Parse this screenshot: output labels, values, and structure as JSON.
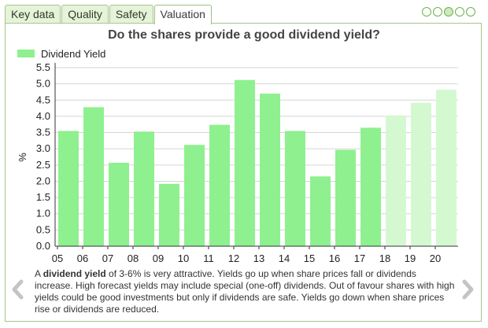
{
  "tabs": [
    {
      "label": "Key data"
    },
    {
      "label": "Quality"
    },
    {
      "label": "Safety"
    },
    {
      "label": "Valuation"
    }
  ],
  "active_tab": 3,
  "pager": {
    "count": 5,
    "active": 2
  },
  "colors": {
    "bar_actual": "#8ef08e",
    "bar_forecast": "#d4f9d0",
    "arrow": "#c4c4c4"
  },
  "caption": {
    "intro": "A ",
    "term": "dividend yield",
    "rest": " of 3-6% is very attractive. Yields go up when share prices fall or dividends increase. High forecast yields may include special (one-off) dividends. Out of favour shares with high yields could be good investments but only if dividends are safe. Yields go down when share prices rise or dividends are reduced."
  },
  "chart_data": {
    "type": "bar",
    "title": "Do the shares provide a good dividend yield?",
    "ylabel": "%",
    "xlabel": "",
    "legend": {
      "label": "Dividend Yield",
      "position": "top-left"
    },
    "ylim": [
      0,
      5.5
    ],
    "yticks": [
      "0.0",
      "0.5",
      "1.0",
      "1.5",
      "2.0",
      "2.5",
      "3.0",
      "3.5",
      "4.0",
      "4.5",
      "5.0",
      "5.5"
    ],
    "categories": [
      "05",
      "06",
      "07",
      "08",
      "09",
      "10",
      "11",
      "12",
      "13",
      "14",
      "15",
      "16",
      "17",
      "18",
      "19",
      "20"
    ],
    "xticks": [
      "05",
      "06",
      "07",
      "08",
      "09",
      "10",
      "11",
      "12",
      "13",
      "14",
      "15",
      "16",
      "17",
      "18",
      "19",
      "20"
    ],
    "values": [
      3.55,
      4.28,
      2.57,
      3.53,
      1.92,
      3.12,
      3.74,
      5.12,
      4.7,
      3.55,
      2.15,
      2.97,
      3.65,
      4.03,
      4.42,
      4.82
    ],
    "forecast_from_index": 13,
    "grid": true
  }
}
